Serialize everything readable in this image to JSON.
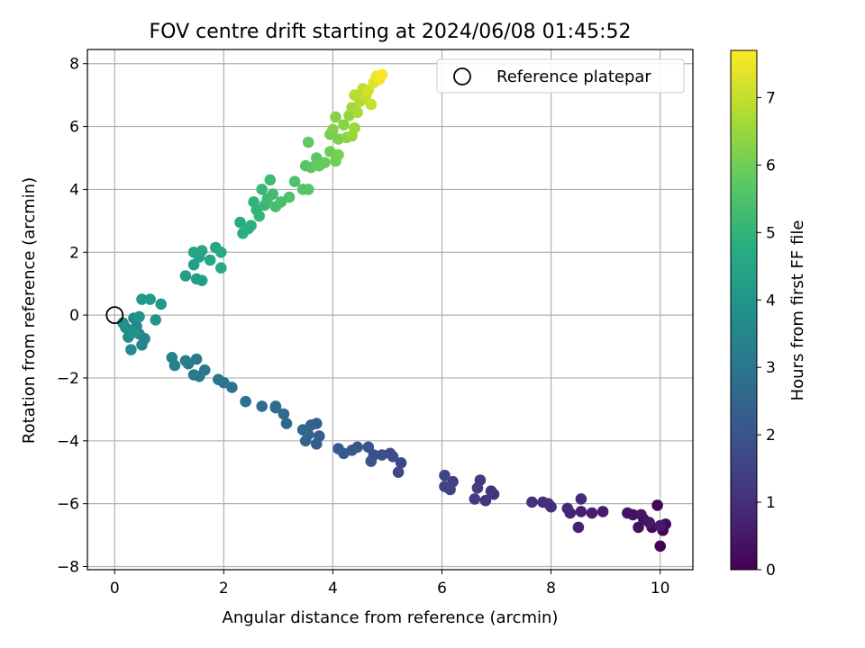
{
  "chart_data": {
    "type": "scatter",
    "title": "FOV centre drift starting at 2024/06/08 01:45:52",
    "xlabel": "Angular distance from reference (arcmin)",
    "ylabel": "Rotation from reference (arcmin)",
    "xlim": [
      -0.5,
      10.6
    ],
    "ylim": [
      -8.1,
      8.45
    ],
    "xticks": [
      0,
      2,
      4,
      6,
      8,
      10
    ],
    "yticks": [
      -8,
      -6,
      -4,
      -2,
      0,
      2,
      4,
      6,
      8
    ],
    "grid": true,
    "legend": {
      "position": "top-right",
      "entries": [
        "Reference platepar"
      ]
    },
    "reference_point": {
      "x": 0,
      "y": 0,
      "label": "Reference platepar"
    },
    "colorbar": {
      "label": "Hours from first FF file",
      "range": [
        0,
        7.7
      ],
      "ticks": [
        0,
        1,
        2,
        3,
        4,
        5,
        6,
        7
      ],
      "colormap": "viridis"
    },
    "points": [
      {
        "x": 10.05,
        "y": -6.85,
        "h": 0.0
      },
      {
        "x": 10.0,
        "y": -7.35,
        "h": 0.05
      },
      {
        "x": 9.95,
        "y": -6.05,
        "h": 0.1
      },
      {
        "x": 10.1,
        "y": -6.65,
        "h": 0.15
      },
      {
        "x": 9.85,
        "y": -6.75,
        "h": 0.2
      },
      {
        "x": 9.7,
        "y": -6.5,
        "h": 0.25
      },
      {
        "x": 9.6,
        "y": -6.75,
        "h": 0.3
      },
      {
        "x": 9.5,
        "y": -6.35,
        "h": 0.35
      },
      {
        "x": 9.4,
        "y": -6.3,
        "h": 0.4
      },
      {
        "x": 9.65,
        "y": -6.35,
        "h": 0.45
      },
      {
        "x": 9.8,
        "y": -6.6,
        "h": 0.5
      },
      {
        "x": 10.0,
        "y": -6.7,
        "h": 0.55
      },
      {
        "x": 8.95,
        "y": -6.25,
        "h": 0.6
      },
      {
        "x": 8.75,
        "y": -6.3,
        "h": 0.65
      },
      {
        "x": 8.55,
        "y": -6.25,
        "h": 0.7
      },
      {
        "x": 8.5,
        "y": -6.75,
        "h": 0.75
      },
      {
        "x": 8.35,
        "y": -6.3,
        "h": 0.8
      },
      {
        "x": 8.3,
        "y": -6.15,
        "h": 0.85
      },
      {
        "x": 8.55,
        "y": -5.85,
        "h": 0.9
      },
      {
        "x": 8.0,
        "y": -6.1,
        "h": 0.95
      },
      {
        "x": 7.95,
        "y": -6.0,
        "h": 1.0
      },
      {
        "x": 7.85,
        "y": -5.95,
        "h": 1.05
      },
      {
        "x": 7.65,
        "y": -5.95,
        "h": 1.1
      },
      {
        "x": 6.95,
        "y": -5.7,
        "h": 1.15
      },
      {
        "x": 6.9,
        "y": -5.6,
        "h": 1.2
      },
      {
        "x": 6.8,
        "y": -5.9,
        "h": 1.25
      },
      {
        "x": 6.7,
        "y": -5.25,
        "h": 1.3
      },
      {
        "x": 6.65,
        "y": -5.5,
        "h": 1.35
      },
      {
        "x": 6.6,
        "y": -5.85,
        "h": 1.4
      },
      {
        "x": 6.2,
        "y": -5.3,
        "h": 1.45
      },
      {
        "x": 6.15,
        "y": -5.55,
        "h": 1.5
      },
      {
        "x": 6.05,
        "y": -5.45,
        "h": 1.55
      },
      {
        "x": 6.05,
        "y": -5.1,
        "h": 1.6
      },
      {
        "x": 5.25,
        "y": -4.7,
        "h": 1.65
      },
      {
        "x": 5.2,
        "y": -5.0,
        "h": 1.7
      },
      {
        "x": 5.1,
        "y": -4.5,
        "h": 1.75
      },
      {
        "x": 5.05,
        "y": -4.4,
        "h": 1.8
      },
      {
        "x": 4.9,
        "y": -4.45,
        "h": 1.85
      },
      {
        "x": 4.75,
        "y": -4.45,
        "h": 1.9
      },
      {
        "x": 4.7,
        "y": -4.65,
        "h": 1.95
      },
      {
        "x": 4.65,
        "y": -4.2,
        "h": 2.0
      },
      {
        "x": 4.45,
        "y": -4.2,
        "h": 2.05
      },
      {
        "x": 4.35,
        "y": -4.3,
        "h": 2.1
      },
      {
        "x": 4.2,
        "y": -4.4,
        "h": 2.15
      },
      {
        "x": 4.1,
        "y": -4.25,
        "h": 2.2
      },
      {
        "x": 3.75,
        "y": -3.85,
        "h": 2.25
      },
      {
        "x": 3.7,
        "y": -4.1,
        "h": 2.3
      },
      {
        "x": 3.7,
        "y": -3.45,
        "h": 2.35
      },
      {
        "x": 3.6,
        "y": -3.5,
        "h": 2.4
      },
      {
        "x": 3.55,
        "y": -3.8,
        "h": 2.45
      },
      {
        "x": 3.5,
        "y": -4.0,
        "h": 2.5
      },
      {
        "x": 3.45,
        "y": -3.65,
        "h": 2.55
      },
      {
        "x": 3.15,
        "y": -3.45,
        "h": 2.6
      },
      {
        "x": 3.1,
        "y": -3.15,
        "h": 2.65
      },
      {
        "x": 2.95,
        "y": -2.95,
        "h": 2.7
      },
      {
        "x": 2.95,
        "y": -2.9,
        "h": 2.75
      },
      {
        "x": 2.7,
        "y": -2.9,
        "h": 2.8
      },
      {
        "x": 2.4,
        "y": -2.75,
        "h": 2.85
      },
      {
        "x": 2.15,
        "y": -2.3,
        "h": 2.9
      },
      {
        "x": 2.0,
        "y": -2.15,
        "h": 2.95
      },
      {
        "x": 1.9,
        "y": -2.05,
        "h": 3.0
      },
      {
        "x": 1.65,
        "y": -1.75,
        "h": 3.05
      },
      {
        "x": 1.55,
        "y": -1.95,
        "h": 3.1
      },
      {
        "x": 1.45,
        "y": -1.9,
        "h": 3.15
      },
      {
        "x": 1.5,
        "y": -1.4,
        "h": 3.2
      },
      {
        "x": 1.35,
        "y": -1.55,
        "h": 3.25
      },
      {
        "x": 1.3,
        "y": -1.45,
        "h": 3.3
      },
      {
        "x": 1.1,
        "y": -1.6,
        "h": 3.35
      },
      {
        "x": 1.05,
        "y": -1.35,
        "h": 3.4
      },
      {
        "x": 0.55,
        "y": -0.75,
        "h": 3.45
      },
      {
        "x": 0.5,
        "y": -0.95,
        "h": 3.5
      },
      {
        "x": 0.45,
        "y": -0.6,
        "h": 3.55
      },
      {
        "x": 0.4,
        "y": -0.35,
        "h": 3.6
      },
      {
        "x": 0.35,
        "y": -0.1,
        "h": 3.65
      },
      {
        "x": 0.3,
        "y": -1.1,
        "h": 3.7
      },
      {
        "x": 0.25,
        "y": -0.7,
        "h": 3.75
      },
      {
        "x": 0.2,
        "y": -0.4,
        "h": 3.8
      },
      {
        "x": 0.15,
        "y": -0.25,
        "h": 3.85
      },
      {
        "x": 0.35,
        "y": -0.55,
        "h": 3.9
      },
      {
        "x": 0.45,
        "y": -0.05,
        "h": 3.95
      },
      {
        "x": 0.75,
        "y": -0.15,
        "h": 4.0
      },
      {
        "x": 0.5,
        "y": 0.5,
        "h": 4.05
      },
      {
        "x": 0.65,
        "y": 0.5,
        "h": 4.1
      },
      {
        "x": 0.85,
        "y": 0.35,
        "h": 4.15
      },
      {
        "x": 1.3,
        "y": 1.25,
        "h": 4.2
      },
      {
        "x": 1.5,
        "y": 1.15,
        "h": 4.25
      },
      {
        "x": 1.6,
        "y": 1.1,
        "h": 4.3
      },
      {
        "x": 1.45,
        "y": 1.6,
        "h": 4.35
      },
      {
        "x": 1.55,
        "y": 1.85,
        "h": 4.4
      },
      {
        "x": 1.45,
        "y": 2.0,
        "h": 4.45
      },
      {
        "x": 1.6,
        "y": 2.05,
        "h": 4.5
      },
      {
        "x": 1.75,
        "y": 1.75,
        "h": 4.55
      },
      {
        "x": 1.85,
        "y": 2.15,
        "h": 4.6
      },
      {
        "x": 1.95,
        "y": 2.0,
        "h": 4.65
      },
      {
        "x": 1.95,
        "y": 1.5,
        "h": 4.7
      },
      {
        "x": 2.3,
        "y": 2.95,
        "h": 4.75
      },
      {
        "x": 2.35,
        "y": 2.6,
        "h": 4.8
      },
      {
        "x": 2.45,
        "y": 2.75,
        "h": 4.85
      },
      {
        "x": 2.5,
        "y": 2.85,
        "h": 4.9
      },
      {
        "x": 2.55,
        "y": 3.6,
        "h": 4.95
      },
      {
        "x": 2.6,
        "y": 3.35,
        "h": 5.0
      },
      {
        "x": 2.65,
        "y": 3.15,
        "h": 5.05
      },
      {
        "x": 2.7,
        "y": 4.0,
        "h": 5.1
      },
      {
        "x": 2.75,
        "y": 3.5,
        "h": 5.15
      },
      {
        "x": 2.8,
        "y": 3.7,
        "h": 5.2
      },
      {
        "x": 2.85,
        "y": 4.3,
        "h": 5.25
      },
      {
        "x": 2.9,
        "y": 3.85,
        "h": 5.3
      },
      {
        "x": 2.95,
        "y": 3.45,
        "h": 5.35
      },
      {
        "x": 3.05,
        "y": 3.6,
        "h": 5.4
      },
      {
        "x": 3.2,
        "y": 3.75,
        "h": 5.45
      },
      {
        "x": 3.3,
        "y": 4.25,
        "h": 5.5
      },
      {
        "x": 3.45,
        "y": 4.0,
        "h": 5.55
      },
      {
        "x": 3.55,
        "y": 4.0,
        "h": 5.6
      },
      {
        "x": 3.5,
        "y": 4.75,
        "h": 5.65
      },
      {
        "x": 3.6,
        "y": 4.7,
        "h": 5.7
      },
      {
        "x": 3.7,
        "y": 5.0,
        "h": 5.75
      },
      {
        "x": 3.55,
        "y": 5.5,
        "h": 5.8
      },
      {
        "x": 3.75,
        "y": 4.75,
        "h": 5.85
      },
      {
        "x": 3.85,
        "y": 4.85,
        "h": 5.9
      },
      {
        "x": 3.95,
        "y": 5.2,
        "h": 5.95
      },
      {
        "x": 3.95,
        "y": 5.75,
        "h": 6.0
      },
      {
        "x": 4.05,
        "y": 4.9,
        "h": 6.05
      },
      {
        "x": 4.1,
        "y": 5.1,
        "h": 6.1
      },
      {
        "x": 4.1,
        "y": 5.6,
        "h": 6.15
      },
      {
        "x": 4.0,
        "y": 5.9,
        "h": 6.2
      },
      {
        "x": 4.05,
        "y": 6.3,
        "h": 6.25
      },
      {
        "x": 4.2,
        "y": 6.05,
        "h": 6.3
      },
      {
        "x": 4.25,
        "y": 5.65,
        "h": 6.35
      },
      {
        "x": 4.3,
        "y": 6.35,
        "h": 6.4
      },
      {
        "x": 4.35,
        "y": 5.7,
        "h": 6.45
      },
      {
        "x": 4.4,
        "y": 5.95,
        "h": 6.5
      },
      {
        "x": 4.35,
        "y": 6.6,
        "h": 6.6
      },
      {
        "x": 4.45,
        "y": 6.45,
        "h": 6.65
      },
      {
        "x": 4.5,
        "y": 6.8,
        "h": 6.75
      },
      {
        "x": 4.4,
        "y": 7.0,
        "h": 6.85
      },
      {
        "x": 4.55,
        "y": 7.2,
        "h": 6.9
      },
      {
        "x": 4.6,
        "y": 6.95,
        "h": 7.0
      },
      {
        "x": 4.7,
        "y": 6.7,
        "h": 7.05
      },
      {
        "x": 4.65,
        "y": 7.15,
        "h": 7.15
      },
      {
        "x": 4.75,
        "y": 7.4,
        "h": 7.3
      },
      {
        "x": 4.8,
        "y": 7.6,
        "h": 7.45
      },
      {
        "x": 4.85,
        "y": 7.5,
        "h": 7.55
      },
      {
        "x": 4.9,
        "y": 7.65,
        "h": 7.65
      }
    ]
  }
}
